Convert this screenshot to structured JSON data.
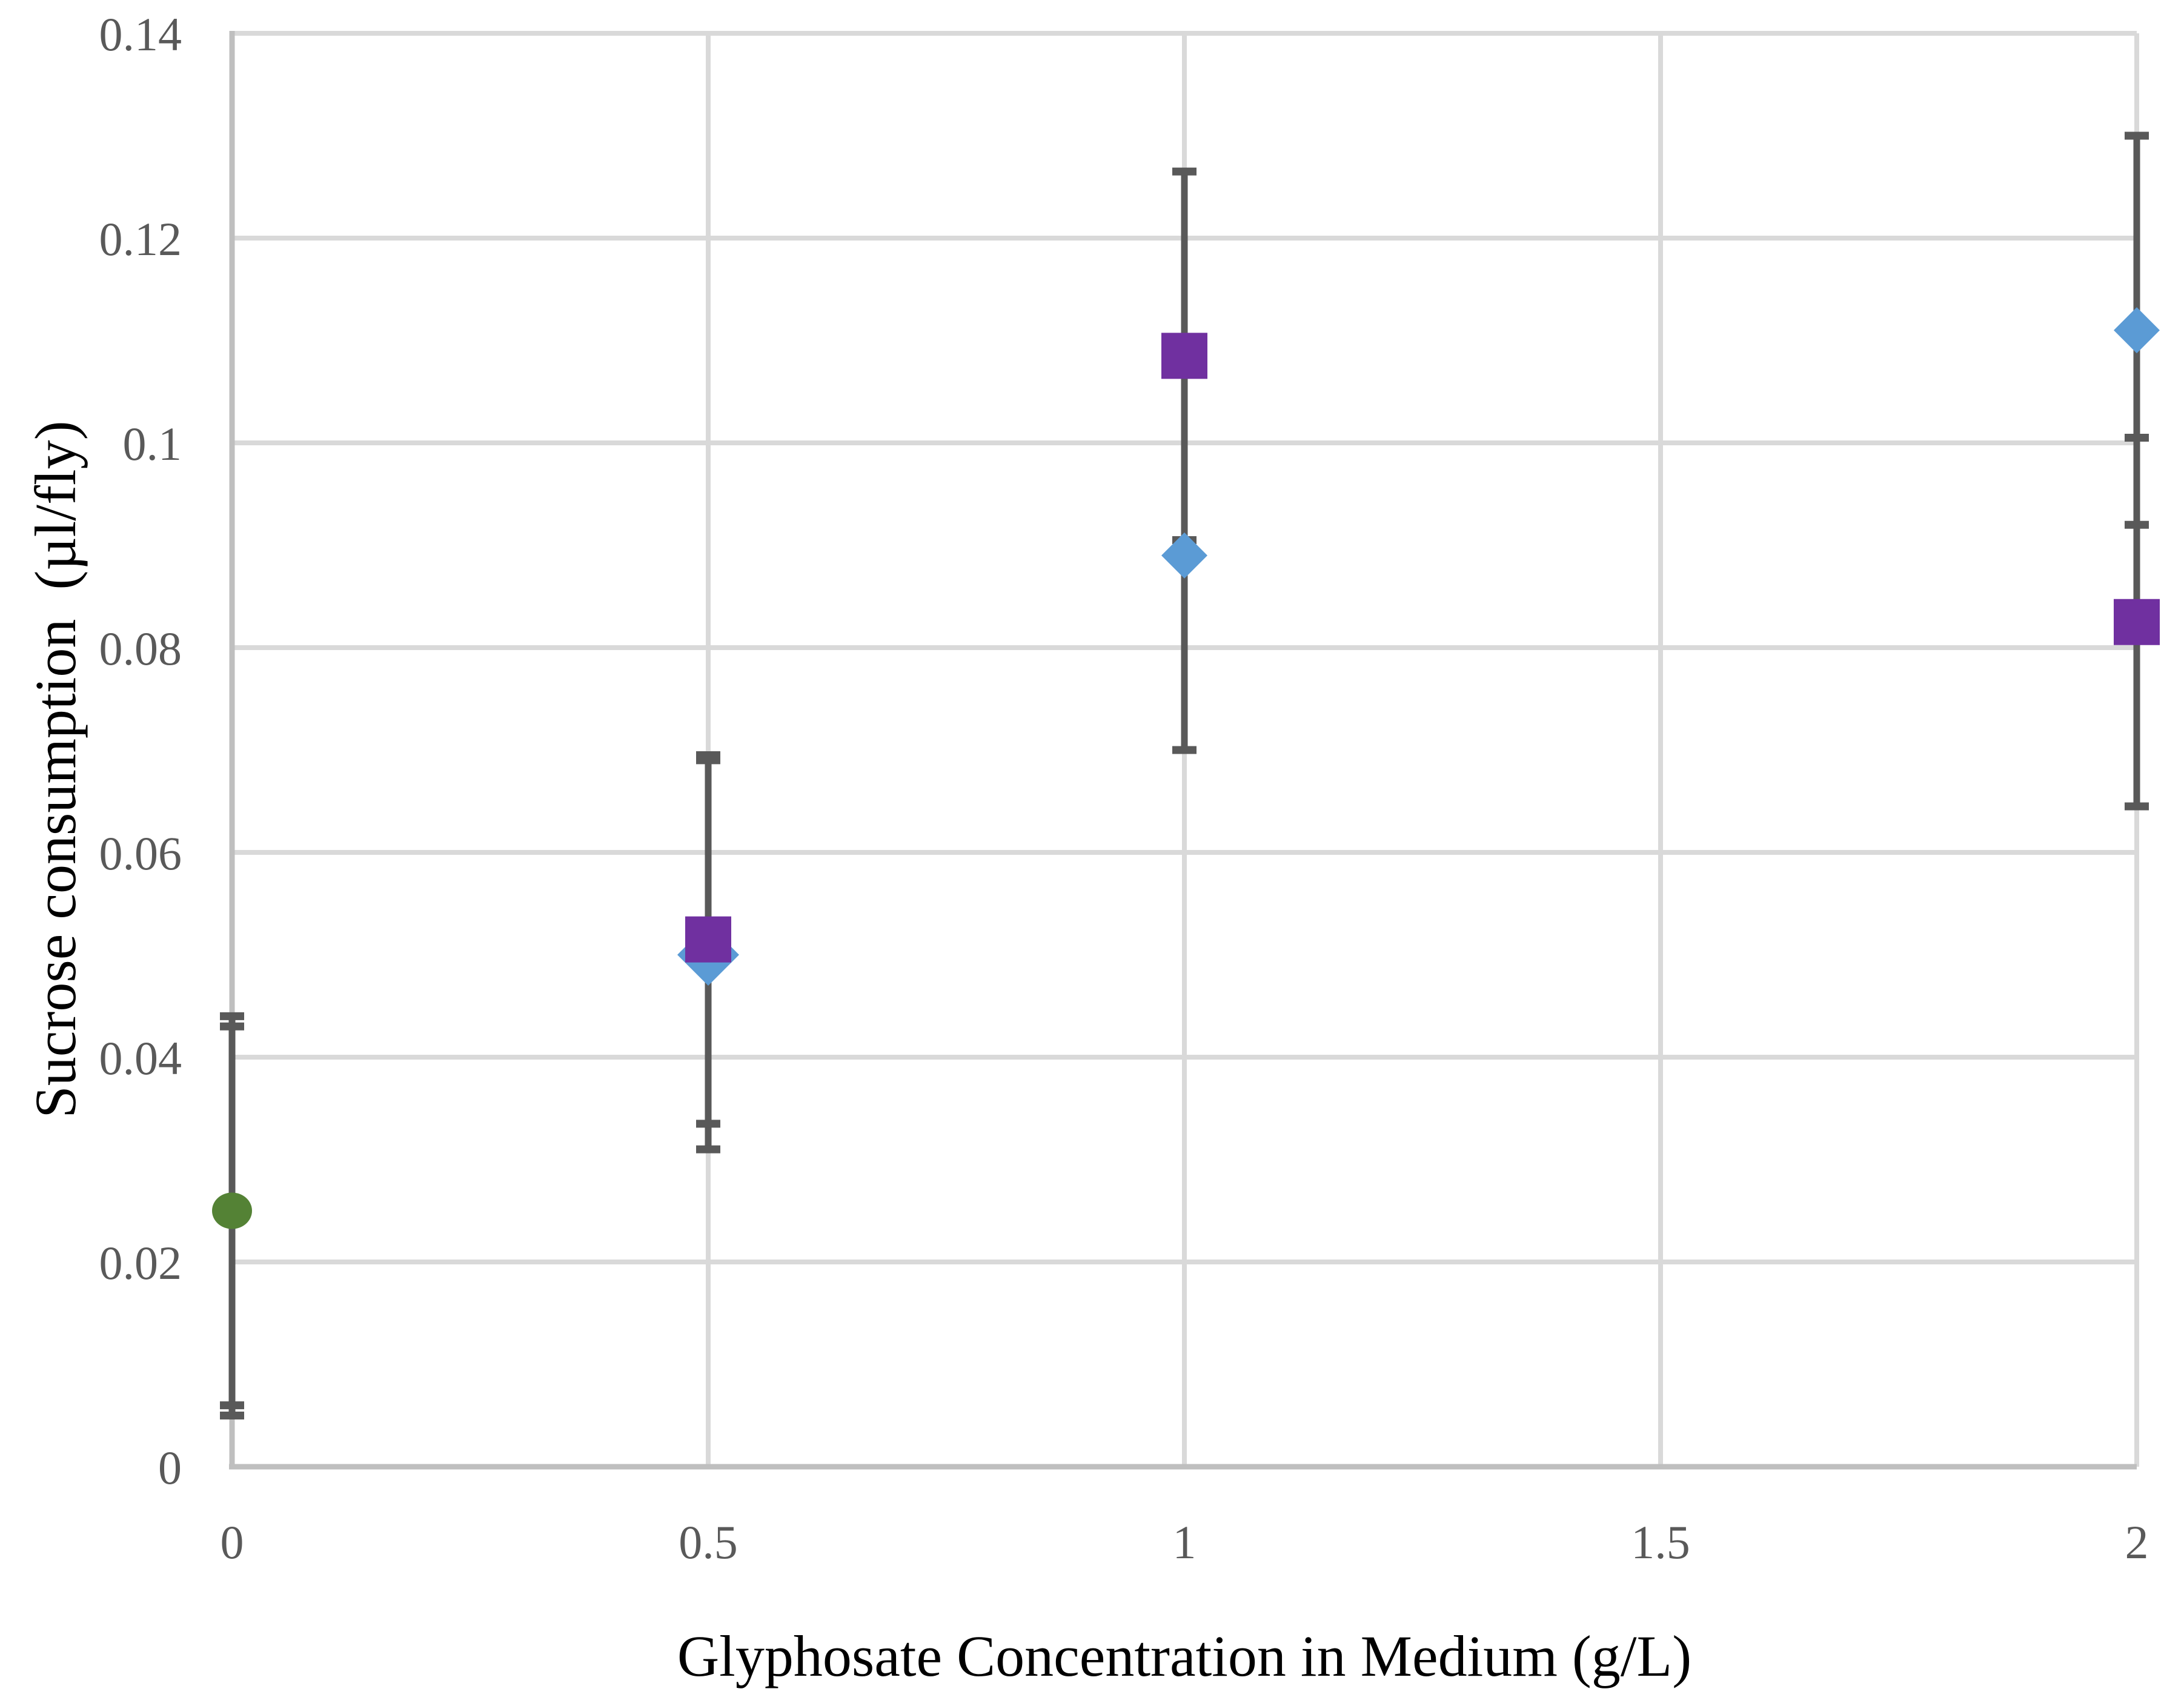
{
  "chart_data": {
    "type": "scatter",
    "title": "",
    "xlabel": "Glyphosate Concentration in Medium (g/L)",
    "ylabel": "Sucrose consumption  (µl/fly)",
    "xlim": [
      0,
      2
    ],
    "ylim": [
      0,
      0.14
    ],
    "grid": "both",
    "legend_position": "none",
    "x_ticks": {
      "values": [
        0,
        0.5,
        1,
        1.5,
        2
      ],
      "labels": [
        "0",
        "0.5",
        "1",
        "1.5",
        "2"
      ]
    },
    "y_ticks": {
      "values": [
        0,
        0.02,
        0.04,
        0.06,
        0.08,
        0.1,
        0.12,
        0.14
      ],
      "labels": [
        "0",
        "0.02",
        "0.04",
        "0.06",
        "0.08",
        "0.1",
        "0.12",
        "0.14"
      ]
    },
    "colors": {
      "blue_series": "#5B9BD5",
      "purple_series": "#7030A0",
      "green_control": "#548235",
      "error_bar": "#595959",
      "gridline": "#D9D9D9",
      "axis_line": "#BFBFBF",
      "tick_label": "#595959",
      "axis_title": "#000000"
    },
    "series": [
      {
        "name": "blue-diamond-series",
        "marker": "diamond",
        "color_key": "blue_series",
        "points": [
          {
            "x": 0,
            "y": 0.0245,
            "err_lo": 0.005,
            "err_hi": 0.044,
            "marker_visible": false
          },
          {
            "x": 0.5,
            "y": 0.05,
            "err_lo": 0.031,
            "err_hi": 0.069,
            "marker_visible": true
          },
          {
            "x": 1,
            "y": 0.089,
            "err_lo": 0.07,
            "err_hi": 0.108,
            "marker_visible": true
          },
          {
            "x": 2,
            "y": 0.111,
            "err_lo": 0.092,
            "err_hi": 0.13,
            "marker_visible": true
          }
        ]
      },
      {
        "name": "purple-square-series",
        "marker": "square",
        "color_key": "purple_series",
        "points": [
          {
            "x": 0,
            "y": 0.0245,
            "err_lo": 0.006,
            "err_hi": 0.043,
            "marker_visible": false
          },
          {
            "x": 0.5,
            "y": 0.0515,
            "err_lo": 0.0335,
            "err_hi": 0.0695,
            "marker_visible": true
          },
          {
            "x": 1,
            "y": 0.1085,
            "err_lo": 0.0905,
            "err_hi": 0.1265,
            "marker_visible": true
          },
          {
            "x": 2,
            "y": 0.0825,
            "err_lo": 0.0645,
            "err_hi": 0.1005,
            "marker_visible": true
          }
        ]
      },
      {
        "name": "green-circle-control",
        "marker": "circle",
        "color_key": "green_control",
        "points": [
          {
            "x": 0,
            "y": 0.025,
            "marker_visible": true
          }
        ]
      }
    ]
  }
}
